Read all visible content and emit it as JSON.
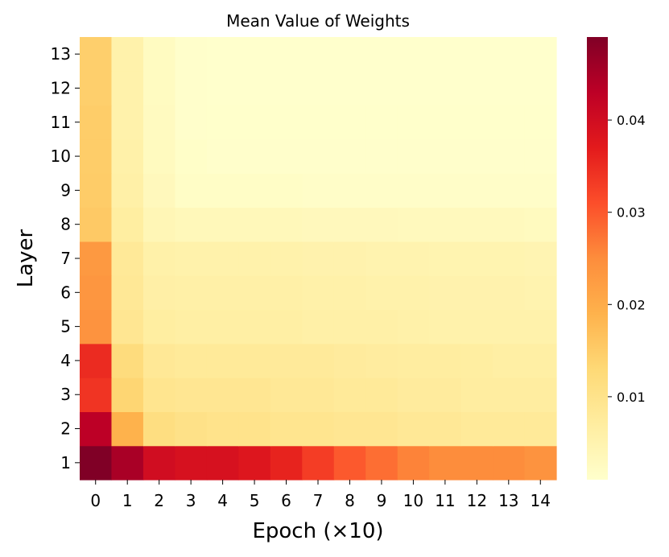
{
  "chart_data": {
    "type": "heatmap",
    "title": "Mean Value of Weights",
    "xlabel": "Epoch (×10)",
    "ylabel": "Layer",
    "x_categories": [
      "0",
      "1",
      "2",
      "3",
      "4",
      "5",
      "6",
      "7",
      "8",
      "9",
      "10",
      "11",
      "12",
      "13",
      "14"
    ],
    "y_categories": [
      "1",
      "2",
      "3",
      "4",
      "5",
      "6",
      "7",
      "8",
      "9",
      "10",
      "11",
      "12",
      "13"
    ],
    "values": [
      [
        0.049,
        0.045,
        0.04,
        0.039,
        0.039,
        0.038,
        0.036,
        0.033,
        0.03,
        0.028,
        0.026,
        0.025,
        0.025,
        0.025,
        0.024
      ],
      [
        0.043,
        0.019,
        0.0115,
        0.0105,
        0.01,
        0.01,
        0.0095,
        0.0095,
        0.009,
        0.009,
        0.0085,
        0.0085,
        0.008,
        0.008,
        0.008
      ],
      [
        0.034,
        0.0135,
        0.0095,
        0.009,
        0.009,
        0.009,
        0.0085,
        0.0085,
        0.008,
        0.008,
        0.0075,
        0.0075,
        0.007,
        0.007,
        0.007
      ],
      [
        0.035,
        0.012,
        0.0085,
        0.008,
        0.008,
        0.008,
        0.0078,
        0.0078,
        0.0075,
        0.0072,
        0.007,
        0.007,
        0.0068,
        0.0065,
        0.0065
      ],
      [
        0.024,
        0.009,
        0.0068,
        0.0065,
        0.0065,
        0.0065,
        0.0065,
        0.006,
        0.006,
        0.006,
        0.0058,
        0.0055,
        0.0055,
        0.0055,
        0.0055
      ],
      [
        0.0235,
        0.0085,
        0.0062,
        0.006,
        0.006,
        0.006,
        0.006,
        0.0058,
        0.0058,
        0.0055,
        0.0055,
        0.0052,
        0.0052,
        0.0052,
        0.005
      ],
      [
        0.023,
        0.0082,
        0.0058,
        0.0055,
        0.0055,
        0.0055,
        0.0055,
        0.0052,
        0.0052,
        0.005,
        0.005,
        0.0048,
        0.0048,
        0.0048,
        0.0046
      ],
      [
        0.0155,
        0.0068,
        0.004,
        0.0035,
        0.0035,
        0.0035,
        0.0035,
        0.0032,
        0.0032,
        0.0032,
        0.003,
        0.003,
        0.003,
        0.003,
        0.0028
      ],
      [
        0.015,
        0.006,
        0.0032,
        0.0018,
        0.0018,
        0.0018,
        0.0018,
        0.0016,
        0.0016,
        0.0016,
        0.0016,
        0.0016,
        0.0016,
        0.0016,
        0.0016
      ],
      [
        0.0148,
        0.0058,
        0.0028,
        0.0015,
        0.0012,
        0.0012,
        0.0012,
        0.0012,
        0.0012,
        0.0012,
        0.0012,
        0.0012,
        0.0012,
        0.0012,
        0.0012
      ],
      [
        0.0148,
        0.0055,
        0.0026,
        0.0012,
        0.0011,
        0.0011,
        0.0011,
        0.0011,
        0.0011,
        0.0011,
        0.0011,
        0.0011,
        0.0011,
        0.0011,
        0.0011
      ],
      [
        0.0145,
        0.0055,
        0.0025,
        0.0012,
        0.001,
        0.001,
        0.001,
        0.001,
        0.001,
        0.001,
        0.001,
        0.001,
        0.001,
        0.001,
        0.001
      ],
      [
        0.0145,
        0.0055,
        0.0025,
        0.0012,
        0.001,
        0.001,
        0.001,
        0.001,
        0.001,
        0.001,
        0.001,
        0.001,
        0.001,
        0.001,
        0.001
      ]
    ],
    "colormap": "YlOrRd",
    "colormap_stops": [
      "#ffffcc",
      "#ffeda0",
      "#fed976",
      "#feb24c",
      "#fd8d3c",
      "#fc4e2a",
      "#e31a1c",
      "#bd0026",
      "#800026"
    ],
    "color_range": [
      0.001,
      0.049
    ],
    "colorbar_ticks": [
      0.01,
      0.02,
      0.03,
      0.04
    ],
    "colorbar_tick_labels": [
      "0.01",
      "0.02",
      "0.03",
      "0.04"
    ],
    "grid": false
  }
}
